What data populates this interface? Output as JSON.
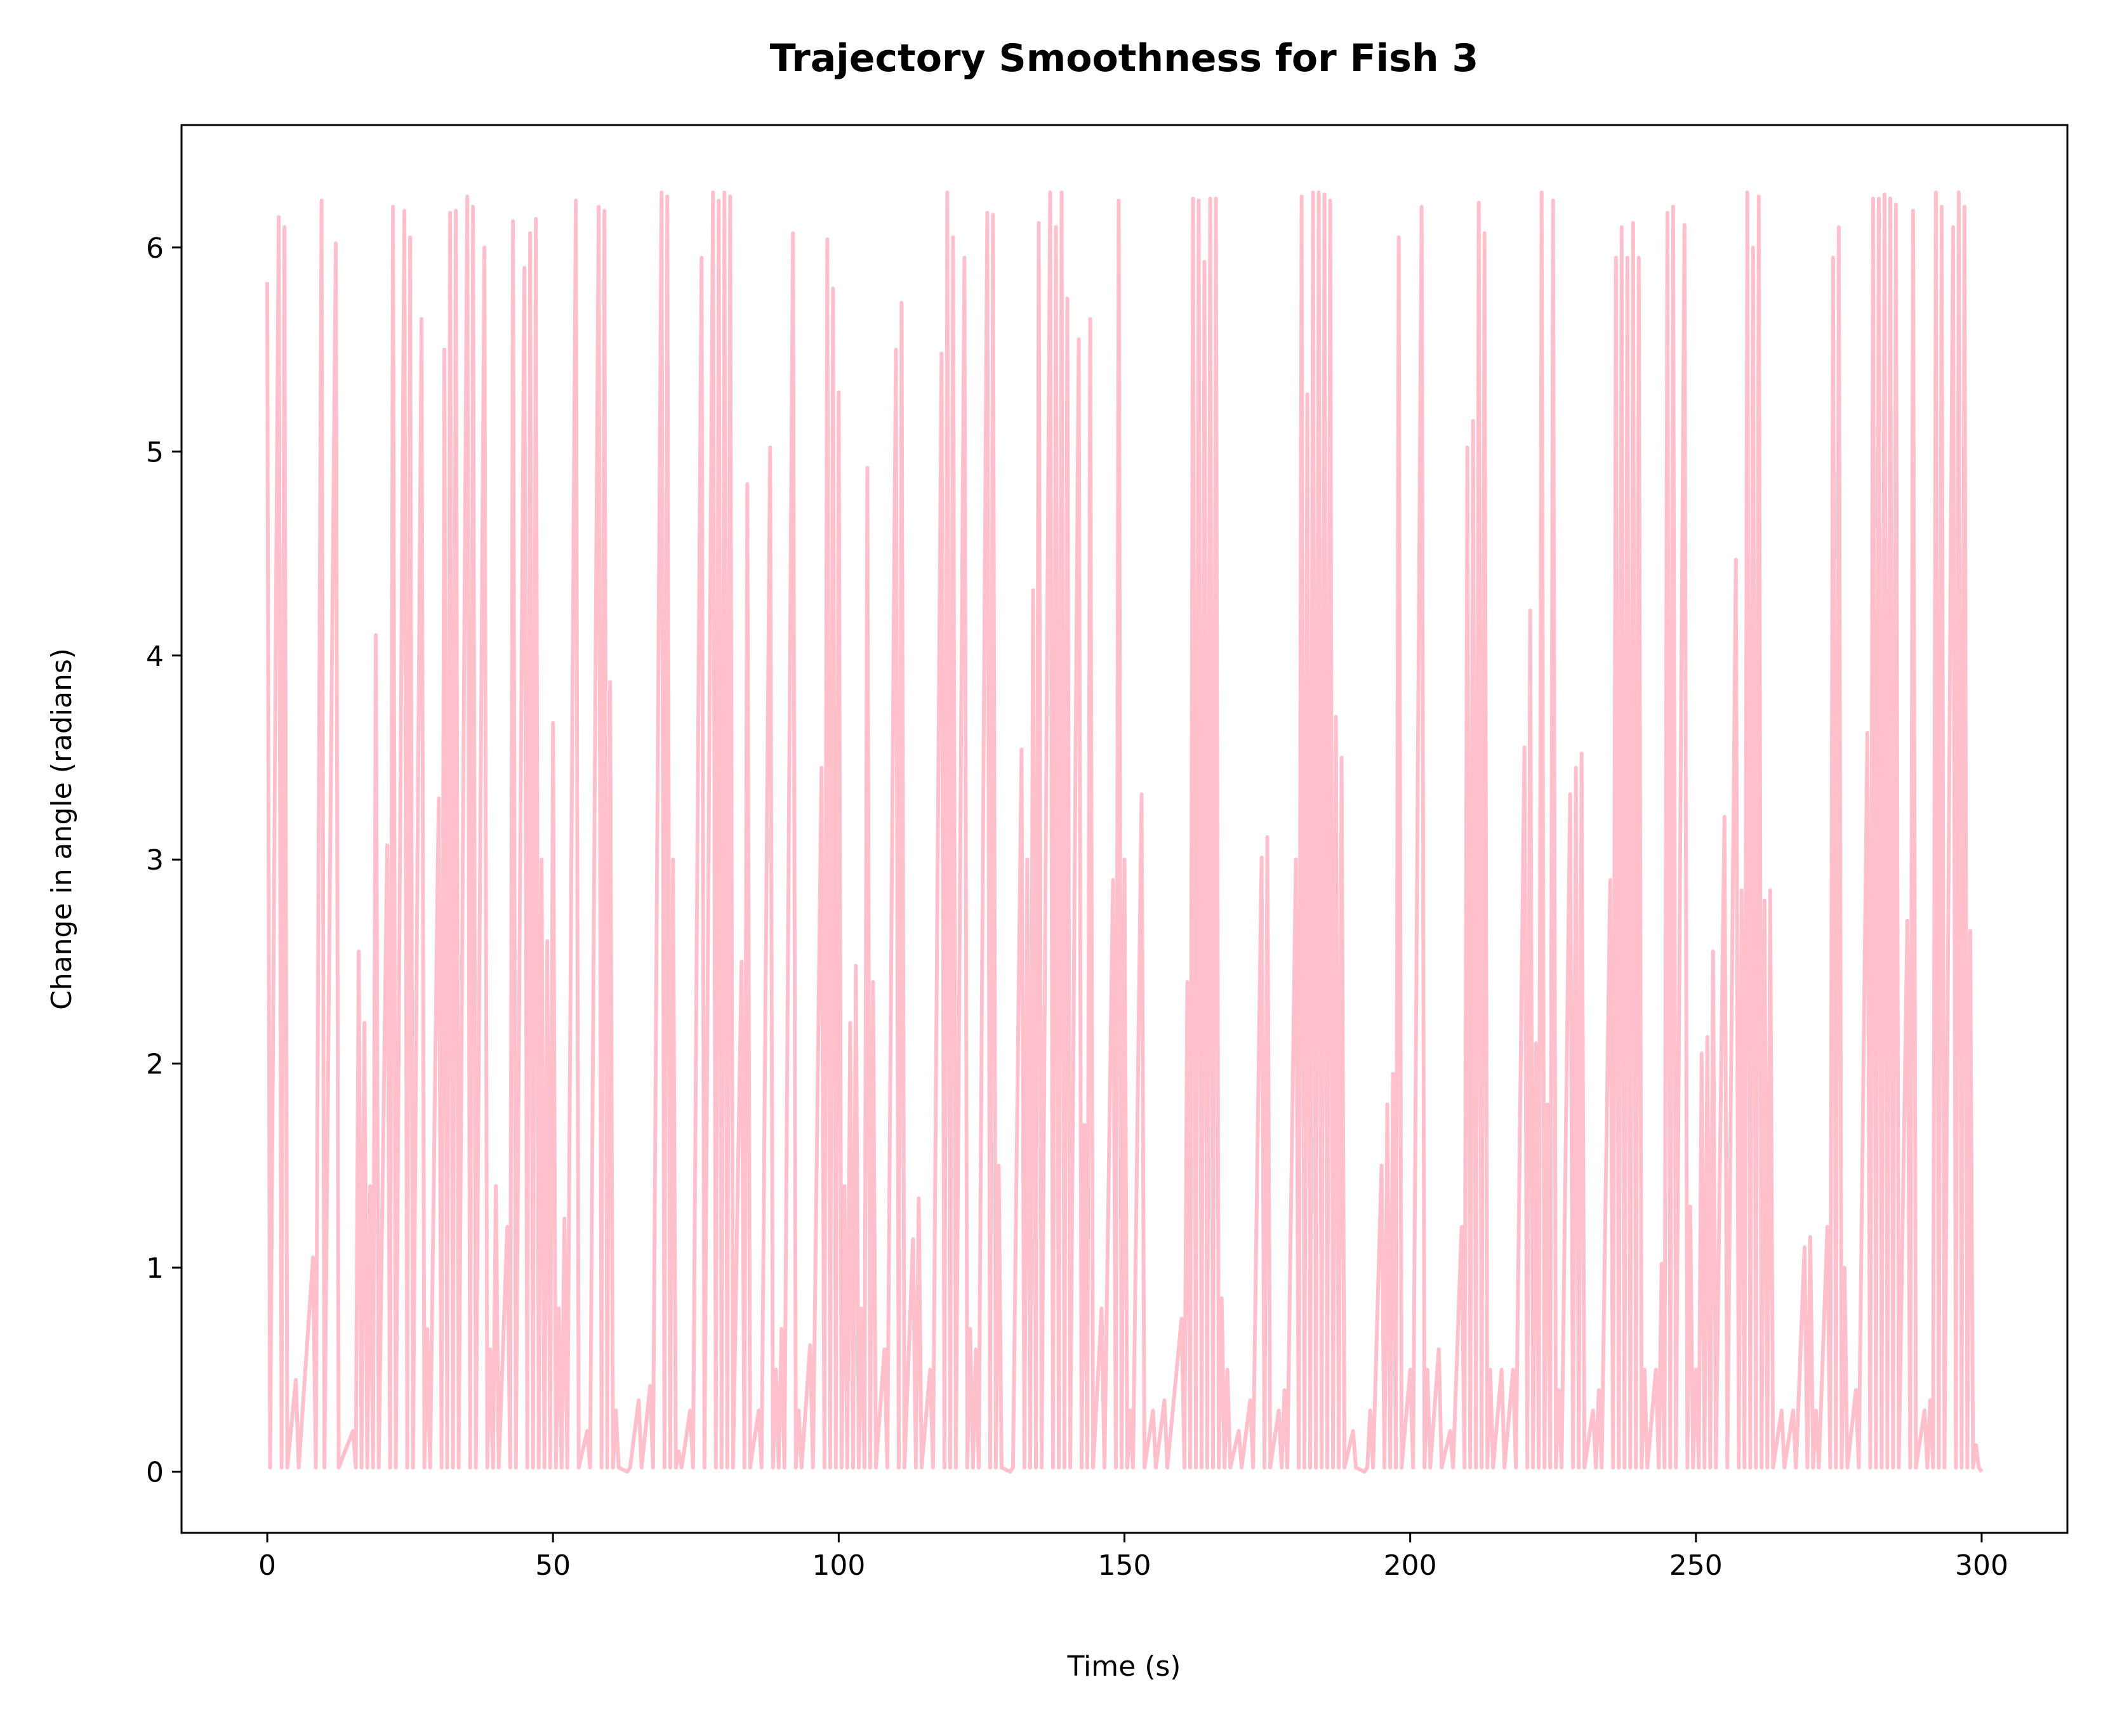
{
  "chart_data": {
    "type": "line",
    "title": "Trajectory Smoothness for Fish 3",
    "xlabel": "Time (s)",
    "ylabel": "Change in angle (radians)",
    "x": [
      0,
      0.5,
      2,
      2.5,
      3,
      3.5,
      5,
      5.5,
      8,
      8.5,
      9.5,
      10,
      12,
      12.5,
      15,
      15.5,
      16,
      16.5,
      17,
      17.5,
      18,
      18.5,
      19,
      19.5,
      21,
      21.5,
      22,
      22.5,
      24,
      24.5,
      25,
      25.5,
      27,
      27.5,
      28,
      28.5,
      30,
      30.5,
      31,
      31.5,
      32,
      32.5,
      33,
      33.5,
      35,
      35.5,
      36,
      36.5,
      38,
      38.5,
      39,
      39.5,
      40,
      40.5,
      42,
      42.5,
      43,
      43.5,
      45,
      45.5,
      46,
      46.5,
      47,
      47.5,
      48,
      48.5,
      49,
      49.5,
      50,
      50.5,
      51,
      51.5,
      52,
      52.5,
      54,
      54.5,
      56,
      56.5,
      58,
      58.5,
      59,
      59.5,
      60,
      60.5,
      61,
      61.5,
      63,
      63.5,
      65,
      65.5,
      67,
      67.5,
      69,
      69.5,
      70,
      70.5,
      71,
      71.5,
      72,
      72.5,
      74,
      74.5,
      76,
      76.5,
      78,
      78.5,
      79,
      79.5,
      80,
      80.5,
      81,
      81.5,
      83,
      83.5,
      84,
      84.5,
      86,
      86.5,
      88,
      88.5,
      89,
      89.5,
      90,
      90.5,
      92,
      92.5,
      93,
      93.5,
      95,
      95.5,
      97,
      97.5,
      98,
      98.5,
      99,
      99.5,
      100,
      100.5,
      101,
      101.5,
      102,
      102.5,
      103,
      103.5,
      104,
      104.5,
      105,
      105.5,
      106,
      106.5,
      108,
      108.5,
      110,
      110.5,
      111,
      111.5,
      113,
      113.5,
      114,
      114.5,
      116,
      116.5,
      118,
      118.5,
      119,
      119.5,
      120,
      120.5,
      122,
      122.5,
      123,
      123.5,
      124,
      124.5,
      126,
      126.5,
      127,
      127.5,
      128,
      128.5,
      130,
      130.5,
      132,
      132.5,
      133,
      133.5,
      134,
      134.5,
      135,
      135.5,
      137,
      137.5,
      138,
      138.5,
      139,
      139.5,
      140,
      140.5,
      142,
      142.5,
      143,
      143.5,
      144,
      144.5,
      146,
      146.5,
      148,
      148.5,
      149,
      149.5,
      150,
      150.5,
      151,
      151.5,
      153,
      153.5,
      155,
      155.5,
      157,
      157.5,
      160,
      160.5,
      161,
      161.5,
      162,
      162.5,
      163,
      163.5,
      164,
      164.5,
      165,
      165.5,
      166,
      166.5,
      167,
      167.5,
      168,
      168.5,
      170,
      170.5,
      172,
      172.5,
      174,
      174.5,
      175,
      175.5,
      177,
      177.5,
      178,
      178.5,
      180,
      180.5,
      181,
      181.5,
      182,
      182.5,
      183,
      183.5,
      184,
      184.5,
      185,
      185.5,
      186,
      186.5,
      187,
      187.5,
      188,
      188.5,
      190,
      190.5,
      192,
      192.5,
      193,
      193.5,
      195,
      195.5,
      196,
      196.5,
      197,
      197.5,
      198,
      198.5,
      200,
      200.5,
      202,
      202.5,
      203,
      203.5,
      205,
      205.5,
      207,
      207.5,
      209,
      209.5,
      210,
      210.5,
      211,
      211.5,
      212,
      212.5,
      213,
      213.5,
      214,
      214.5,
      216,
      216.5,
      218,
      218.5,
      220,
      220.5,
      221,
      221.5,
      222,
      222.5,
      223,
      223.5,
      224,
      224.5,
      225,
      225.5,
      226,
      226.5,
      228,
      228.5,
      229,
      229.5,
      230,
      230.5,
      232,
      232.5,
      233,
      233.5,
      235,
      235.5,
      236,
      236.5,
      237,
      237.5,
      238,
      238.5,
      239,
      239.5,
      240,
      240.5,
      241,
      241.5,
      243,
      243.5,
      244,
      244.5,
      245,
      245.5,
      246,
      246.5,
      248,
      248.5,
      249,
      249.5,
      250,
      250.5,
      251,
      251.5,
      252,
      252.5,
      253,
      253.5,
      255,
      255.5,
      257,
      257.5,
      258,
      258.5,
      259,
      259.5,
      260,
      260.5,
      261,
      261.5,
      262,
      262.5,
      263,
      263.5,
      265,
      265.5,
      267,
      267.5,
      269,
      269.5,
      270,
      270.5,
      271,
      271.5,
      273,
      273.5,
      274,
      274.5,
      275,
      275.5,
      276,
      276.5,
      278,
      278.5,
      280,
      280.5,
      281,
      281.5,
      282,
      282.5,
      283,
      283.5,
      284,
      284.5,
      285,
      285.5,
      287,
      287.5,
      288,
      288.5,
      290,
      290.5,
      291,
      291.5,
      292,
      292.5,
      293,
      293.5,
      295,
      295.5,
      296,
      296.5,
      297,
      297.5,
      298,
      298.5,
      299,
      299.5,
      300
    ],
    "series": [
      {
        "color": "#ffc0cb",
        "values": [
          5.83,
          0.02,
          6.15,
          0.02,
          6.1,
          0.02,
          0.45,
          0.02,
          1.05,
          0.02,
          6.23,
          0.02,
          6.02,
          0.02,
          0.2,
          0.02,
          2.55,
          0.02,
          2.2,
          0.02,
          1.4,
          0.02,
          4.1,
          0.02,
          3.07,
          0.02,
          6.2,
          0.02,
          6.18,
          0.02,
          6.05,
          0.02,
          5.65,
          0.02,
          0.7,
          0.02,
          3.3,
          0.02,
          5.5,
          0.02,
          6.17,
          0.02,
          6.18,
          0.02,
          6.25,
          0.02,
          6.2,
          0.02,
          6.0,
          0.02,
          0.6,
          0.02,
          1.4,
          0.02,
          1.2,
          0.02,
          6.13,
          0.02,
          5.9,
          0.02,
          6.07,
          0.02,
          6.14,
          0.02,
          3.0,
          0.02,
          2.6,
          0.02,
          3.67,
          0.02,
          0.8,
          0.02,
          1.24,
          0.02,
          6.23,
          0.02,
          0.2,
          0.02,
          6.2,
          0.02,
          6.18,
          0.02,
          3.87,
          0.02,
          0.3,
          0.02,
          0.0,
          0.02,
          0.35,
          0.02,
          0.42,
          0.02,
          6.27,
          0.02,
          6.25,
          0.02,
          3.0,
          0.02,
          0.1,
          0.02,
          0.3,
          0.02,
          5.95,
          0.02,
          6.27,
          0.02,
          6.23,
          0.02,
          6.27,
          0.02,
          6.25,
          0.02,
          2.5,
          0.02,
          4.84,
          0.02,
          0.3,
          0.02,
          5.02,
          0.02,
          0.5,
          0.02,
          0.7,
          0.02,
          6.07,
          0.02,
          0.3,
          0.02,
          0.62,
          0.02,
          3.45,
          0.02,
          6.04,
          0.02,
          5.8,
          0.02,
          5.29,
          0.02,
          1.4,
          0.02,
          2.2,
          0.02,
          2.48,
          0.02,
          0.8,
          0.02,
          4.92,
          0.02,
          2.4,
          0.02,
          0.6,
          0.02,
          5.5,
          0.02,
          5.73,
          0.02,
          1.14,
          0.02,
          1.34,
          0.02,
          0.5,
          0.02,
          5.48,
          0.02,
          6.27,
          0.02,
          6.05,
          0.02,
          5.95,
          0.02,
          0.7,
          0.02,
          0.6,
          0.02,
          6.17,
          0.02,
          6.16,
          0.02,
          1.5,
          0.02,
          0.0,
          0.02,
          3.54,
          0.02,
          3.0,
          0.02,
          4.32,
          0.02,
          6.12,
          0.02,
          6.27,
          0.02,
          6.1,
          0.02,
          6.27,
          0.02,
          5.75,
          0.02,
          5.55,
          0.02,
          1.7,
          0.02,
          5.65,
          0.02,
          0.8,
          0.02,
          2.9,
          0.02,
          6.23,
          0.02,
          3.0,
          0.02,
          0.3,
          0.02,
          3.32,
          0.02,
          0.3,
          0.02,
          0.35,
          0.02,
          0.75,
          0.02,
          2.4,
          0.02,
          6.24,
          0.02,
          6.23,
          0.02,
          5.93,
          0.02,
          6.24,
          0.02,
          6.24,
          0.02,
          0.85,
          0.02,
          0.5,
          0.02,
          0.2,
          0.02,
          0.35,
          0.02,
          3.01,
          0.02,
          3.11,
          0.02,
          0.3,
          0.02,
          0.4,
          0.02,
          3.0,
          0.02,
          6.25,
          0.02,
          5.28,
          0.02,
          6.27,
          0.02,
          6.27,
          0.02,
          6.26,
          0.02,
          6.23,
          0.02,
          3.7,
          0.02,
          3.5,
          0.02,
          0.2,
          0.02,
          0.0,
          0.02,
          0.3,
          0.02,
          1.5,
          0.02,
          1.8,
          0.02,
          1.95,
          0.02,
          6.05,
          0.02,
          0.5,
          0.02,
          6.2,
          0.02,
          0.5,
          0.02,
          0.6,
          0.02,
          0.2,
          0.02,
          1.2,
          0.02,
          5.02,
          0.02,
          5.15,
          0.02,
          6.22,
          0.02,
          6.07,
          0.02,
          0.5,
          0.02,
          0.5,
          0.02,
          0.5,
          0.02,
          3.55,
          0.02,
          4.22,
          0.02,
          2.1,
          0.02,
          6.27,
          0.02,
          1.8,
          0.02,
          6.23,
          0.02,
          0.4,
          0.02,
          3.32,
          0.02,
          3.45,
          0.02,
          3.52,
          0.02,
          0.3,
          0.02,
          0.4,
          0.02,
          2.9,
          0.02,
          5.95,
          0.02,
          6.1,
          0.02,
          5.95,
          0.02,
          6.12,
          0.02,
          5.95,
          0.02,
          0.5,
          0.02,
          0.5,
          0.02,
          1.02,
          0.02,
          6.17,
          0.02,
          6.2,
          0.02,
          6.11,
          0.02,
          1.3,
          0.02,
          0.5,
          0.02,
          2.05,
          0.02,
          2.13,
          0.02,
          2.55,
          0.02,
          3.21,
          0.02,
          4.47,
          0.02,
          2.85,
          0.02,
          6.27,
          0.02,
          6.0,
          0.02,
          6.25,
          0.02,
          2.8,
          0.02,
          2.85,
          0.02,
          0.3,
          0.02,
          0.3,
          0.02,
          1.1,
          0.02,
          1.15,
          0.02,
          0.3,
          0.02,
          1.2,
          0.02,
          5.95,
          0.02,
          6.1,
          0.02,
          1.0,
          0.02,
          0.4,
          0.02,
          3.62,
          0.02,
          6.24,
          0.02,
          6.24,
          0.02,
          6.26,
          0.02,
          6.24,
          0.02,
          6.21,
          0.02,
          2.7,
          0.02,
          6.18,
          0.02,
          0.3,
          0.02,
          0.35,
          0.02,
          6.27,
          0.02,
          6.2,
          0.02,
          6.1,
          0.02,
          6.27,
          0.02,
          6.2,
          0.02,
          2.65,
          0.02,
          0.13,
          0.02,
          0.0
        ]
      }
    ],
    "xlim": [
      -15,
      315
    ],
    "ylim": [
      -0.3,
      6.6
    ],
    "xticks": [
      0,
      50,
      100,
      150,
      200,
      250,
      300
    ],
    "yticks": [
      0,
      1,
      2,
      3,
      4,
      5,
      6
    ]
  }
}
